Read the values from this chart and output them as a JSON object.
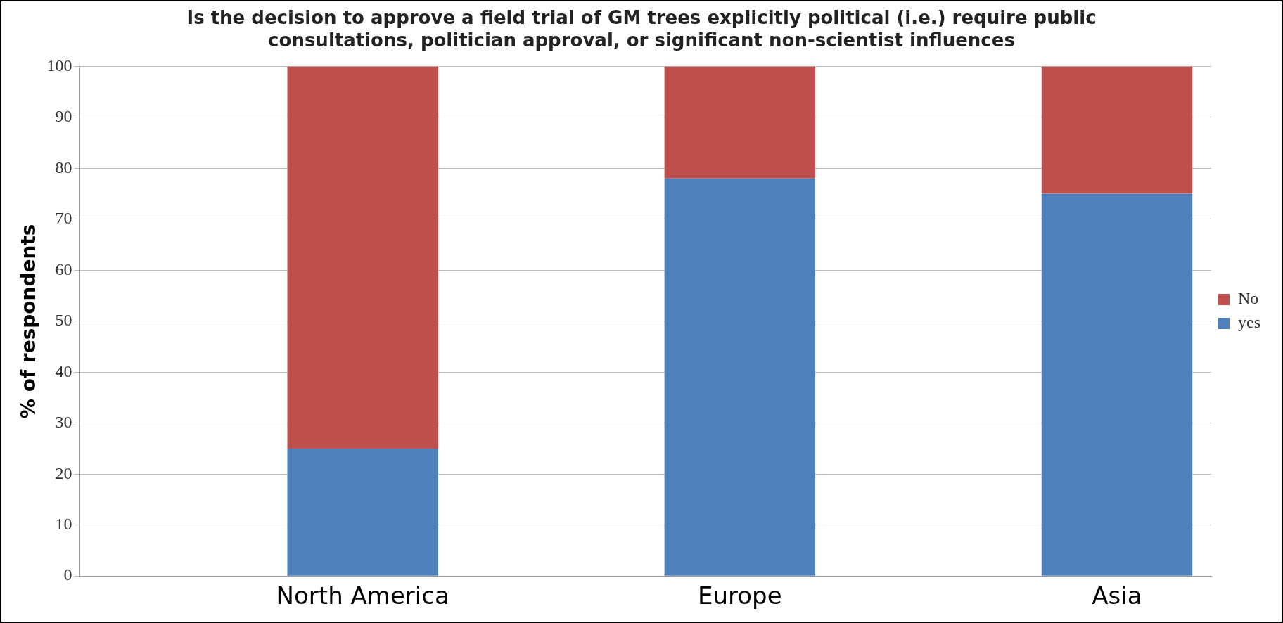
{
  "chart_data": {
    "type": "bar",
    "title": "Is the decision to approve a field trial of GM trees explicitly political (i.e.) require public consultations, politician approval, or significant non-scientist influences",
    "ylabel": "% of respondents",
    "categories": [
      null,
      "North America",
      null,
      "Europe",
      null,
      "Asia"
    ],
    "series": [
      {
        "name": "yes",
        "color": "#4f81bd",
        "values": [
          null,
          25,
          null,
          78,
          null,
          75
        ]
      },
      {
        "name": "No",
        "color": "#c0504d",
        "values": [
          null,
          75,
          null,
          22,
          null,
          25
        ]
      }
    ],
    "stacked": true,
    "ylim": [
      0,
      100
    ],
    "yticks": [
      0,
      10,
      20,
      30,
      40,
      50,
      60,
      70,
      80,
      90,
      100
    ],
    "grid": "y",
    "legend": "right"
  }
}
